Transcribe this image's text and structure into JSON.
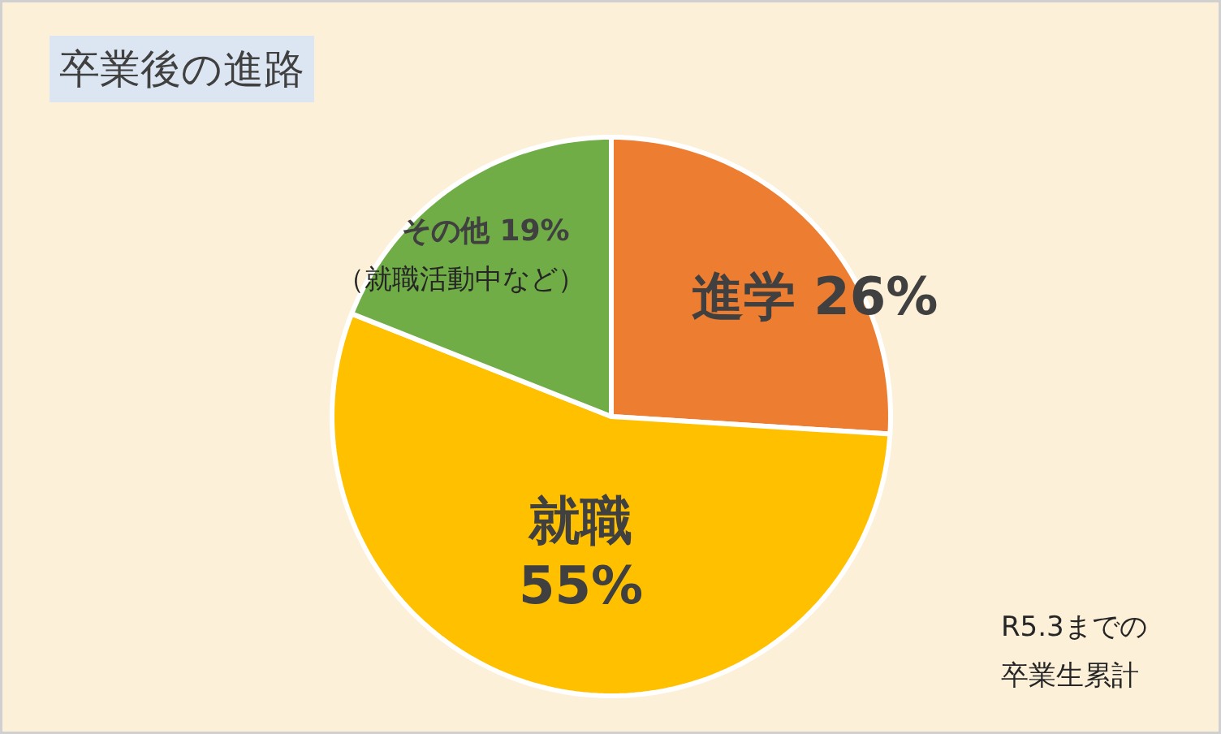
{
  "chart_data": {
    "type": "pie",
    "title": "卒業後の進路",
    "categories": [
      "進学",
      "就職",
      "その他"
    ],
    "values": [
      26,
      55,
      19
    ],
    "value_labels": [
      "26%",
      "55%",
      "19%"
    ],
    "colors": [
      "#ed7d31",
      "#ffc000",
      "#70ad47"
    ],
    "annotations": [
      {
        "text": "（就職活動中など）",
        "x": "その他"
      },
      "R5.3までの卒業生累計"
    ]
  }
}
